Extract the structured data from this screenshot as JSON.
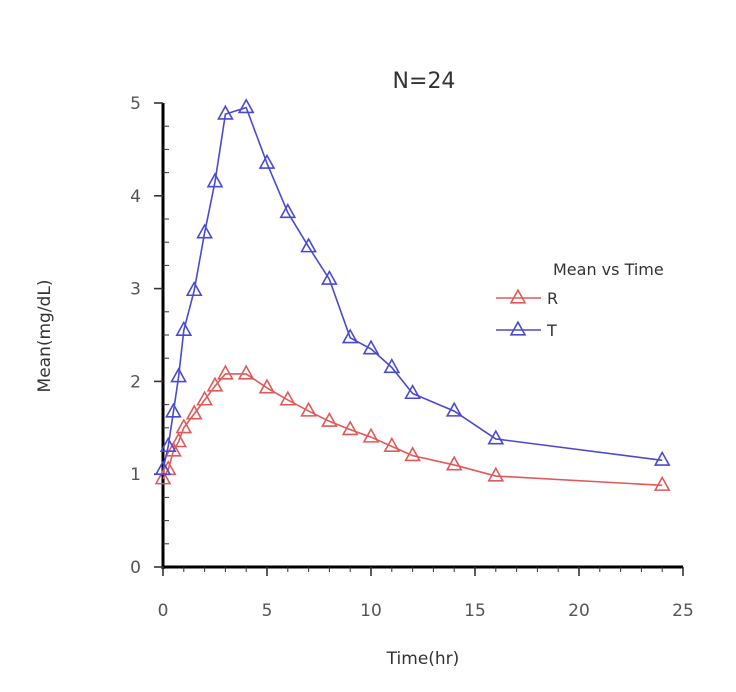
{
  "chart_data": {
    "type": "line",
    "title": "N=24",
    "xlabel": "Time(hr)",
    "ylabel": "Mean(mg/dL)",
    "xlim": [
      0,
      25
    ],
    "ylim": [
      0,
      5
    ],
    "xticks": [
      "0",
      "5",
      "10",
      "15",
      "20",
      "25"
    ],
    "yticks": [
      "0",
      "1",
      "2",
      "3",
      "4",
      "5"
    ],
    "grid": false,
    "legend": {
      "title": "Mean vs Time",
      "placement": "right"
    },
    "series": [
      {
        "name": "R",
        "color": "#e05a5a",
        "marker": "triangle-open",
        "x": [
          0,
          0.25,
          0.5,
          0.75,
          1,
          1.5,
          2,
          2.5,
          3,
          4,
          5,
          6,
          7,
          8,
          9,
          10,
          11,
          12,
          14,
          16,
          24
        ],
        "y": [
          0.95,
          1.05,
          1.25,
          1.35,
          1.5,
          1.65,
          1.8,
          1.95,
          2.08,
          2.08,
          1.93,
          1.8,
          1.68,
          1.57,
          1.48,
          1.4,
          1.3,
          1.2,
          1.1,
          0.98,
          0.88
        ]
      },
      {
        "name": "T",
        "color": "#4a4ad0",
        "marker": "triangle-open",
        "x": [
          0,
          0.25,
          0.5,
          0.75,
          1,
          1.5,
          2,
          2.5,
          3,
          4,
          5,
          6,
          7,
          8,
          9,
          10,
          11,
          12,
          14,
          16,
          24
        ],
        "y": [
          1.05,
          1.3,
          1.67,
          2.05,
          2.55,
          2.98,
          3.6,
          4.15,
          4.88,
          4.95,
          4.35,
          3.82,
          3.45,
          3.1,
          2.47,
          2.35,
          2.15,
          1.87,
          1.68,
          1.38,
          1.15
        ]
      }
    ]
  }
}
